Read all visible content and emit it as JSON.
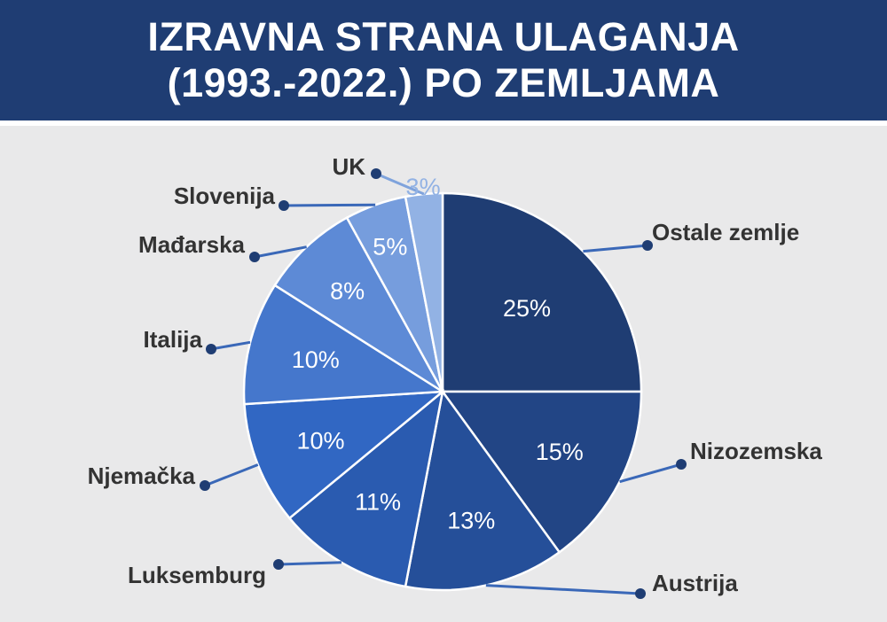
{
  "header": {
    "title_line1": "IZRAVNA STRANA ULAGANJA",
    "title_line2": "(1993.-2022.) PO ZEMLJAMA"
  },
  "colors": {
    "header_bg": "#1f3d73",
    "background": "#e9e9ea",
    "label_text": "#333333",
    "leader": "#1f3d73"
  },
  "chart_data": {
    "type": "pie",
    "title": "IZRAVNA STRANA ULAGANJA (1993.-2022.) PO ZEMLJAMA",
    "unit": "%",
    "legend": "none",
    "slices": [
      {
        "name": "Ostale zemlje",
        "value": 25,
        "label": "25%",
        "color": "#1f3d73",
        "label_color": "#ffffff"
      },
      {
        "name": "Nizozemska",
        "value": 15,
        "label": "15%",
        "color": "#224585",
        "label_color": "#ffffff"
      },
      {
        "name": "Austrija",
        "value": 13,
        "label": "13%",
        "color": "#254f99",
        "label_color": "#ffffff"
      },
      {
        "name": "Luksemburg",
        "value": 11,
        "label": "11%",
        "color": "#2a5bb0",
        "label_color": "#ffffff"
      },
      {
        "name": "Njemačka",
        "value": 10,
        "label": "10%",
        "color": "#3167c3",
        "label_color": "#ffffff"
      },
      {
        "name": "Italija",
        "value": 10,
        "label": "10%",
        "color": "#4577cc",
        "label_color": "#ffffff"
      },
      {
        "name": "Mađarska",
        "value": 8,
        "label": "8%",
        "color": "#5d8ad6",
        "label_color": "#ffffff"
      },
      {
        "name": "Slovenija",
        "value": 5,
        "label": "5%",
        "color": "#769ddd",
        "label_color": "#ffffff"
      },
      {
        "name": "UK",
        "value": 3,
        "label": "3%",
        "color": "#92b2e4",
        "label_color": "#92b2e4"
      }
    ]
  }
}
